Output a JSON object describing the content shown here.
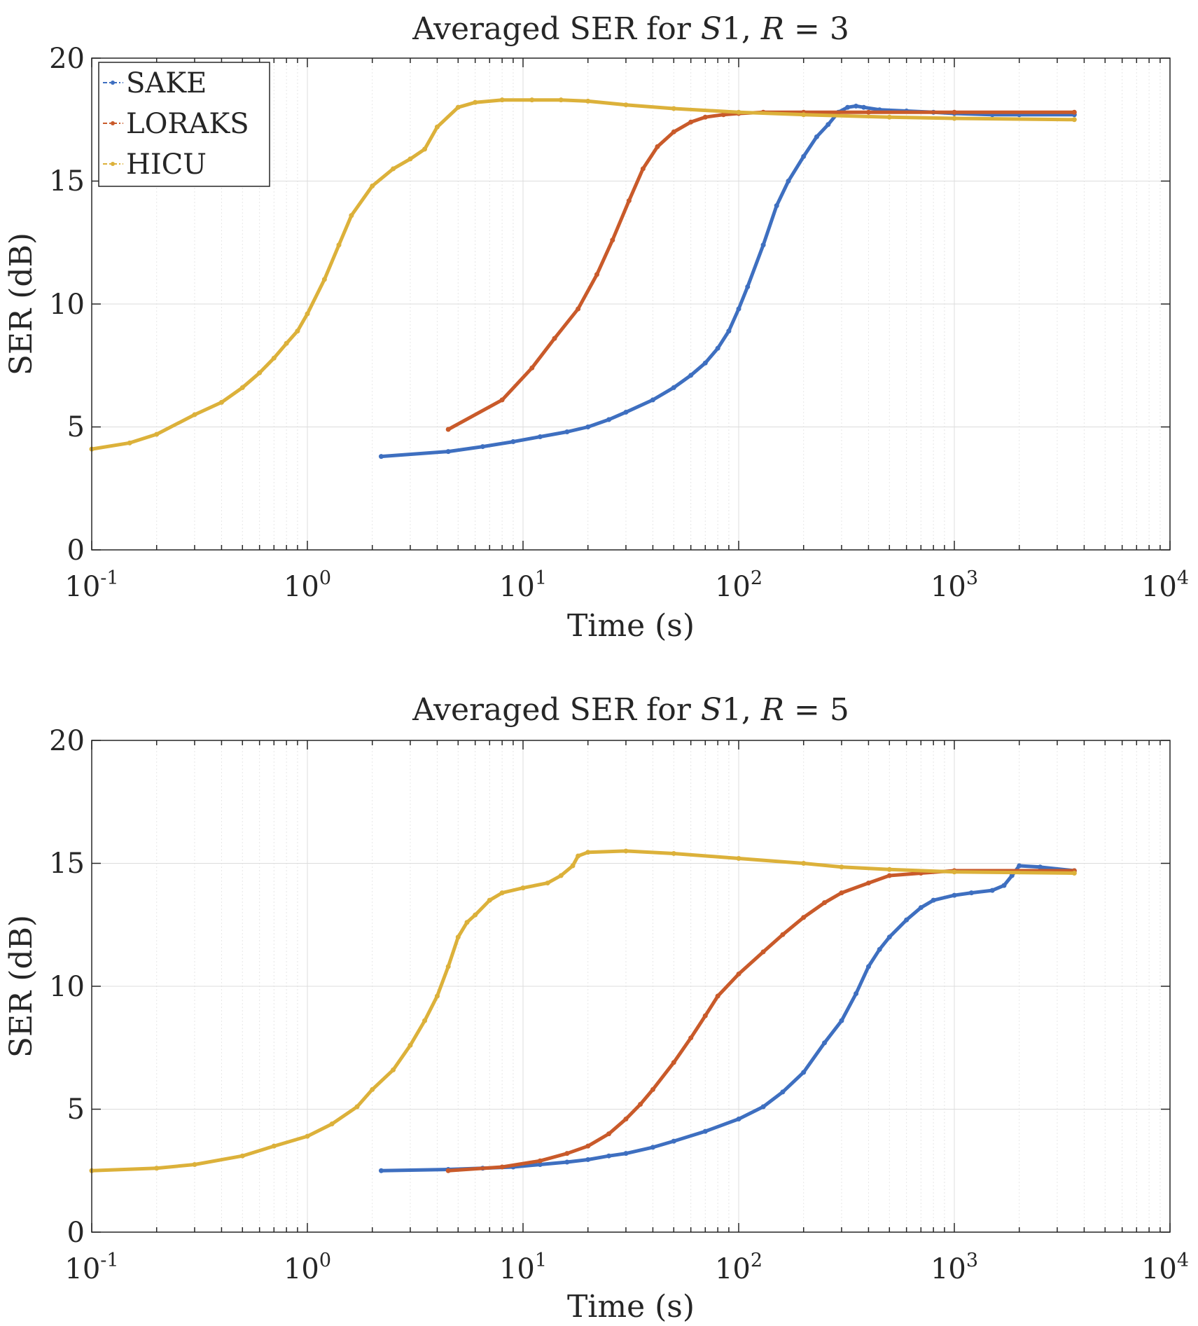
{
  "chart_data": [
    {
      "type": "line",
      "title_prefix": "Averaged SER for ",
      "title_italic_1": "S",
      "title_mid": "1, ",
      "title_italic_2": "R",
      "title_suffix": " = 3",
      "xlabel": "Time (s)",
      "ylabel": "SER (dB)",
      "xscale": "log",
      "xlim": [
        0.1,
        10000
      ],
      "ylim": [
        0,
        20
      ],
      "yticks": [
        "0",
        "5",
        "10",
        "15",
        "20"
      ],
      "xticks": [
        {
          "base": "10",
          "exp": "-1"
        },
        {
          "base": "10",
          "exp": "0"
        },
        {
          "base": "10",
          "exp": "1"
        },
        {
          "base": "10",
          "exp": "2"
        },
        {
          "base": "10",
          "exp": "3"
        },
        {
          "base": "10",
          "exp": "4"
        }
      ],
      "grid": true,
      "legend_position": "top-left",
      "series": [
        {
          "name": "SAKE",
          "color": "#3e6fc0",
          "x": [
            2.2,
            4.5,
            6.5,
            9,
            12,
            16,
            20,
            25,
            30,
            40,
            50,
            60,
            70,
            80,
            90,
            100,
            110,
            130,
            150,
            170,
            200,
            230,
            260,
            290,
            320,
            350,
            380,
            450,
            600,
            800,
            1000,
            1500,
            2000,
            3600
          ],
          "y": [
            3.8,
            4.0,
            4.2,
            4.4,
            4.6,
            4.8,
            5.0,
            5.3,
            5.6,
            6.1,
            6.6,
            7.1,
            7.6,
            8.2,
            8.9,
            9.8,
            10.7,
            12.4,
            14.0,
            15.0,
            16.0,
            16.8,
            17.3,
            17.8,
            18.0,
            18.05,
            18.0,
            17.9,
            17.85,
            17.8,
            17.75,
            17.7,
            17.7,
            17.7
          ]
        },
        {
          "name": "LORAKS",
          "color": "#c95a2a",
          "x": [
            4.5,
            8,
            11,
            14,
            18,
            22,
            26,
            31,
            36,
            42,
            50,
            60,
            70,
            85,
            100,
            130,
            200,
            400,
            1000,
            3600
          ],
          "y": [
            4.9,
            6.1,
            7.4,
            8.6,
            9.8,
            11.2,
            12.6,
            14.2,
            15.5,
            16.4,
            17.0,
            17.4,
            17.6,
            17.7,
            17.75,
            17.8,
            17.8,
            17.8,
            17.8,
            17.8
          ]
        },
        {
          "name": "HICU",
          "color": "#dcb13a",
          "x": [
            0.1,
            0.15,
            0.2,
            0.3,
            0.4,
            0.5,
            0.6,
            0.7,
            0.8,
            0.9,
            1.0,
            1.2,
            1.4,
            1.6,
            2.0,
            2.5,
            3.0,
            3.5,
            4.0,
            5.0,
            6.0,
            8.0,
            11,
            15,
            20,
            30,
            50,
            100,
            200,
            500,
            1000,
            3600
          ],
          "y": [
            4.1,
            4.35,
            4.7,
            5.5,
            6.0,
            6.6,
            7.2,
            7.8,
            8.4,
            8.9,
            9.6,
            11.0,
            12.4,
            13.6,
            14.8,
            15.5,
            15.9,
            16.3,
            17.2,
            18.0,
            18.2,
            18.3,
            18.3,
            18.3,
            18.25,
            18.1,
            17.95,
            17.8,
            17.7,
            17.6,
            17.55,
            17.5
          ]
        }
      ]
    },
    {
      "type": "line",
      "title_prefix": "Averaged SER for ",
      "title_italic_1": "S",
      "title_mid": "1, ",
      "title_italic_2": "R",
      "title_suffix": " = 5",
      "xlabel": "Time (s)",
      "ylabel": "SER (dB)",
      "xscale": "log",
      "xlim": [
        0.1,
        10000
      ],
      "ylim": [
        0,
        20
      ],
      "yticks": [
        "0",
        "5",
        "10",
        "15",
        "20"
      ],
      "xticks": [
        {
          "base": "10",
          "exp": "-1"
        },
        {
          "base": "10",
          "exp": "0"
        },
        {
          "base": "10",
          "exp": "1"
        },
        {
          "base": "10",
          "exp": "2"
        },
        {
          "base": "10",
          "exp": "3"
        },
        {
          "base": "10",
          "exp": "4"
        }
      ],
      "grid": true,
      "series": [
        {
          "name": "SAKE",
          "color": "#3e6fc0",
          "x": [
            2.2,
            4.5,
            6.5,
            9,
            12,
            16,
            20,
            25,
            30,
            40,
            50,
            70,
            100,
            130,
            160,
            200,
            250,
            300,
            350,
            400,
            450,
            500,
            600,
            700,
            800,
            1000,
            1200,
            1500,
            1700,
            1850,
            2000,
            2500,
            3600
          ],
          "y": [
            2.5,
            2.55,
            2.6,
            2.65,
            2.75,
            2.85,
            2.95,
            3.1,
            3.2,
            3.45,
            3.7,
            4.1,
            4.6,
            5.1,
            5.7,
            6.5,
            7.7,
            8.6,
            9.7,
            10.8,
            11.5,
            12.0,
            12.7,
            13.2,
            13.5,
            13.7,
            13.8,
            13.9,
            14.1,
            14.5,
            14.9,
            14.85,
            14.7
          ]
        },
        {
          "name": "LORAKS",
          "color": "#c95a2a",
          "x": [
            4.5,
            8,
            12,
            16,
            20,
            25,
            30,
            35,
            40,
            50,
            60,
            70,
            80,
            100,
            130,
            160,
            200,
            250,
            300,
            400,
            500,
            700,
            1000,
            3600
          ],
          "y": [
            2.5,
            2.65,
            2.9,
            3.2,
            3.5,
            4.0,
            4.6,
            5.2,
            5.8,
            6.9,
            7.9,
            8.8,
            9.6,
            10.5,
            11.4,
            12.1,
            12.8,
            13.4,
            13.8,
            14.2,
            14.5,
            14.6,
            14.7,
            14.7
          ]
        },
        {
          "name": "HICU",
          "color": "#dcb13a",
          "x": [
            0.1,
            0.2,
            0.3,
            0.5,
            0.7,
            1.0,
            1.3,
            1.7,
            2.0,
            2.5,
            3.0,
            3.5,
            4.0,
            4.5,
            5.0,
            5.5,
            6.0,
            7.0,
            8.0,
            10,
            13,
            15,
            17,
            18,
            20,
            30,
            50,
            100,
            200,
            300,
            500,
            1000,
            3600
          ],
          "y": [
            2.5,
            2.6,
            2.75,
            3.1,
            3.5,
            3.9,
            4.4,
            5.1,
            5.8,
            6.6,
            7.6,
            8.6,
            9.6,
            10.8,
            12.0,
            12.6,
            12.9,
            13.5,
            13.8,
            14.0,
            14.2,
            14.5,
            14.9,
            15.3,
            15.45,
            15.5,
            15.4,
            15.2,
            15.0,
            14.85,
            14.75,
            14.65,
            14.6
          ]
        }
      ]
    }
  ]
}
